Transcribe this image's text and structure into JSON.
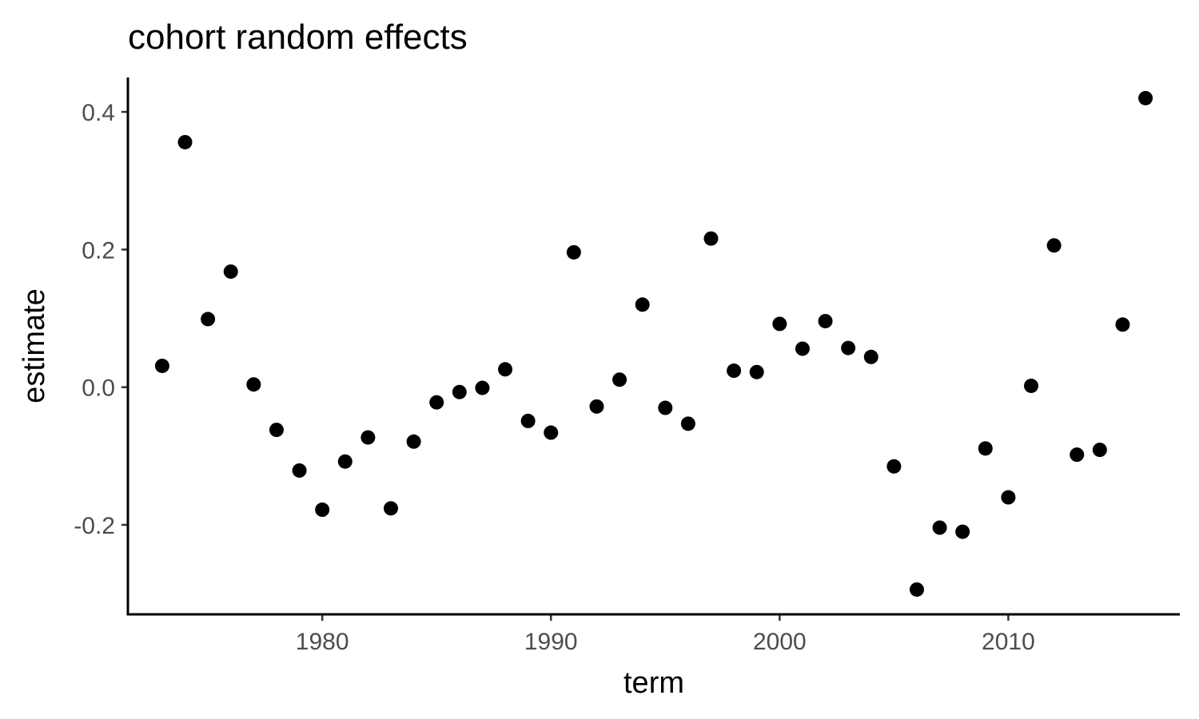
{
  "chart_data": {
    "type": "scatter",
    "title": "cohort random effects",
    "xlabel": "term",
    "ylabel": "estimate",
    "xlim": [
      1971.5,
      2017.5
    ],
    "ylim": [
      -0.33,
      0.45
    ],
    "xticks": [
      1980,
      1990,
      2000,
      2010
    ],
    "xtick_labels": [
      "1980",
      "1990",
      "2000",
      "2010"
    ],
    "yticks": [
      -0.2,
      0.0,
      0.2,
      0.4
    ],
    "ytick_labels": [
      "-0.2",
      "0.0",
      "0.2",
      "0.4"
    ],
    "grid": false,
    "legend": "none",
    "point_color": "#000000",
    "series": [
      {
        "name": "cohort",
        "points": [
          {
            "x": 1973,
            "y": 0.031
          },
          {
            "x": 1974,
            "y": 0.356
          },
          {
            "x": 1975,
            "y": 0.099
          },
          {
            "x": 1976,
            "y": 0.168
          },
          {
            "x": 1977,
            "y": 0.004
          },
          {
            "x": 1978,
            "y": -0.062
          },
          {
            "x": 1979,
            "y": -0.121
          },
          {
            "x": 1980,
            "y": -0.178
          },
          {
            "x": 1981,
            "y": -0.108
          },
          {
            "x": 1982,
            "y": -0.073
          },
          {
            "x": 1983,
            "y": -0.176
          },
          {
            "x": 1984,
            "y": -0.079
          },
          {
            "x": 1985,
            "y": -0.022
          },
          {
            "x": 1986,
            "y": -0.007
          },
          {
            "x": 1987,
            "y": -0.001
          },
          {
            "x": 1988,
            "y": 0.026
          },
          {
            "x": 1989,
            "y": -0.049
          },
          {
            "x": 1990,
            "y": -0.066
          },
          {
            "x": 1991,
            "y": 0.196
          },
          {
            "x": 1992,
            "y": -0.028
          },
          {
            "x": 1993,
            "y": 0.011
          },
          {
            "x": 1994,
            "y": 0.12
          },
          {
            "x": 1995,
            "y": -0.03
          },
          {
            "x": 1996,
            "y": -0.053
          },
          {
            "x": 1997,
            "y": 0.216
          },
          {
            "x": 1998,
            "y": 0.024
          },
          {
            "x": 1999,
            "y": 0.022
          },
          {
            "x": 2000,
            "y": 0.092
          },
          {
            "x": 2001,
            "y": 0.056
          },
          {
            "x": 2002,
            "y": 0.096
          },
          {
            "x": 2003,
            "y": 0.057
          },
          {
            "x": 2004,
            "y": 0.044
          },
          {
            "x": 2005,
            "y": -0.115
          },
          {
            "x": 2006,
            "y": -0.294
          },
          {
            "x": 2007,
            "y": -0.204
          },
          {
            "x": 2008,
            "y": -0.21
          },
          {
            "x": 2009,
            "y": -0.089
          },
          {
            "x": 2010,
            "y": -0.16
          },
          {
            "x": 2011,
            "y": 0.002
          },
          {
            "x": 2012,
            "y": 0.206
          },
          {
            "x": 2013,
            "y": -0.098
          },
          {
            "x": 2014,
            "y": -0.091
          },
          {
            "x": 2015,
            "y": 0.091
          },
          {
            "x": 2016,
            "y": 0.42
          }
        ]
      }
    ]
  }
}
